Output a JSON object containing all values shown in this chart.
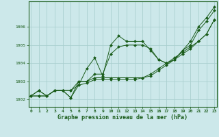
{
  "xlabel": "Graphe pression niveau de la mer (hPa)",
  "background_color": "#cce8ea",
  "grid_color": "#aacfcf",
  "line_color": "#1a5c1a",
  "ylim": [
    1001.6,
    1007.4
  ],
  "xlim": [
    -0.3,
    23.3
  ],
  "yticks": [
    1002,
    1003,
    1004,
    1005,
    1006
  ],
  "xticks": [
    0,
    1,
    2,
    3,
    4,
    5,
    6,
    7,
    8,
    9,
    10,
    11,
    12,
    13,
    14,
    15,
    16,
    17,
    18,
    19,
    20,
    21,
    22,
    23
  ],
  "series1": [
    1002.2,
    1002.5,
    1002.2,
    1002.5,
    1002.5,
    1002.1,
    1002.8,
    1003.7,
    1004.3,
    1003.3,
    1005.0,
    1005.5,
    1005.2,
    1005.2,
    1005.2,
    1004.7,
    1004.2,
    1004.0,
    1004.2,
    1004.7,
    1005.2,
    1006.0,
    1006.5,
    1007.1
  ],
  "series2": [
    1002.2,
    1002.2,
    1002.2,
    1002.5,
    1002.5,
    1002.5,
    1003.0,
    1003.0,
    1003.2,
    1003.2,
    1003.2,
    1003.2,
    1003.2,
    1003.2,
    1003.2,
    1003.4,
    1003.7,
    1004.0,
    1004.3,
    1004.6,
    1004.9,
    1005.2,
    1005.6,
    1006.4
  ],
  "series3": [
    1002.2,
    1002.2,
    1002.2,
    1002.5,
    1002.5,
    1002.5,
    1002.8,
    1002.9,
    1003.1,
    1003.1,
    1003.1,
    1003.1,
    1003.1,
    1003.1,
    1003.2,
    1003.3,
    1003.6,
    1003.9,
    1004.2,
    1004.5,
    1004.8,
    1005.2,
    1005.6,
    1006.4
  ],
  "series4": [
    1002.2,
    1002.5,
    1002.2,
    1002.5,
    1002.5,
    1002.1,
    1003.0,
    1003.0,
    1003.4,
    1003.4,
    1004.5,
    1004.9,
    1005.0,
    1005.0,
    1005.0,
    1004.8,
    1004.2,
    1004.0,
    1004.2,
    1004.7,
    1005.0,
    1005.8,
    1006.3,
    1006.9
  ]
}
